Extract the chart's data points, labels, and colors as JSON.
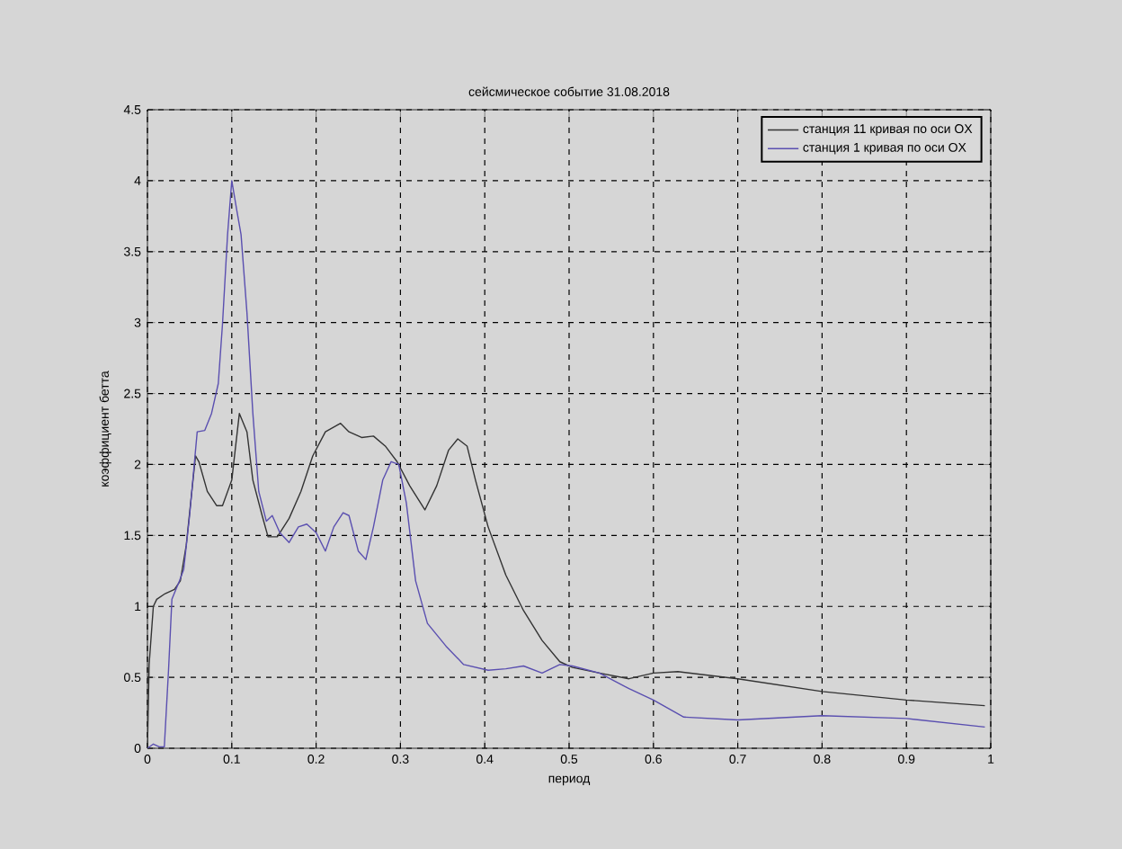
{
  "chart_data": {
    "type": "line",
    "title": "сейсмическое событие 31.08.2018",
    "xlabel": "период",
    "ylabel": "коэффициент бетта",
    "xlim": [
      0,
      1
    ],
    "ylim": [
      0,
      4.5
    ],
    "xticks": [
      0,
      0.1,
      0.2,
      0.3,
      0.4,
      0.5,
      0.6,
      0.7,
      0.8,
      0.9,
      1
    ],
    "yticks": [
      0,
      0.5,
      1,
      1.5,
      2,
      2.5,
      3,
      3.5,
      4,
      4.5
    ],
    "grid": true,
    "legend": "top right",
    "marker": "none",
    "line_style": "solid",
    "series": [
      {
        "name": "станция 11 кривая по оси OX",
        "color": "#333333",
        "x": [
          0,
          0.002,
          0.007,
          0.011,
          0.021,
          0.032,
          0.039,
          0.046,
          0.057,
          0.061,
          0.071,
          0.082,
          0.089,
          0.1,
          0.109,
          0.118,
          0.125,
          0.136,
          0.143,
          0.154,
          0.168,
          0.182,
          0.196,
          0.211,
          0.229,
          0.239,
          0.254,
          0.268,
          0.282,
          0.296,
          0.311,
          0.329,
          0.343,
          0.357,
          0.368,
          0.379,
          0.389,
          0.404,
          0.425,
          0.446,
          0.468,
          0.489,
          0.504,
          0.536,
          0.571,
          0.6,
          0.629,
          0.7,
          0.8,
          0.9,
          0.993
        ],
        "values": [
          0,
          0.59,
          1.0,
          1.05,
          1.09,
          1.12,
          1.18,
          1.43,
          2.06,
          2.02,
          1.81,
          1.71,
          1.71,
          1.89,
          2.36,
          2.23,
          1.89,
          1.64,
          1.49,
          1.49,
          1.62,
          1.81,
          2.06,
          2.23,
          2.29,
          2.23,
          2.19,
          2.2,
          2.13,
          2.02,
          1.85,
          1.68,
          1.85,
          2.1,
          2.18,
          2.13,
          1.89,
          1.56,
          1.22,
          0.97,
          0.76,
          0.61,
          0.57,
          0.53,
          0.49,
          0.53,
          0.54,
          0.49,
          0.4,
          0.34,
          0.3
        ]
      },
      {
        "name": "станция 1 кривая  по оси OX",
        "color": "#5a4fb0",
        "x": [
          0,
          0.007,
          0.014,
          0.02,
          0.025,
          0.029,
          0.038,
          0.043,
          0.05,
          0.059,
          0.068,
          0.076,
          0.084,
          0.089,
          0.095,
          0.1,
          0.106,
          0.111,
          0.118,
          0.125,
          0.132,
          0.141,
          0.148,
          0.157,
          0.168,
          0.179,
          0.189,
          0.2,
          0.211,
          0.221,
          0.232,
          0.239,
          0.25,
          0.259,
          0.268,
          0.279,
          0.289,
          0.298,
          0.307,
          0.318,
          0.332,
          0.354,
          0.375,
          0.404,
          0.425,
          0.446,
          0.468,
          0.489,
          0.504,
          0.536,
          0.571,
          0.6,
          0.636,
          0.7,
          0.8,
          0.9,
          0.993
        ],
        "values": [
          0,
          0.03,
          0.01,
          0.01,
          0.55,
          1.05,
          1.18,
          1.26,
          1.64,
          2.23,
          2.24,
          2.36,
          2.57,
          2.99,
          3.62,
          4.0,
          3.79,
          3.62,
          3.07,
          2.36,
          1.81,
          1.6,
          1.64,
          1.52,
          1.45,
          1.56,
          1.58,
          1.52,
          1.39,
          1.56,
          1.66,
          1.64,
          1.39,
          1.33,
          1.56,
          1.89,
          2.02,
          2.0,
          1.73,
          1.18,
          0.88,
          0.72,
          0.59,
          0.55,
          0.56,
          0.58,
          0.53,
          0.59,
          0.58,
          0.53,
          0.42,
          0.34,
          0.22,
          0.2,
          0.23,
          0.21,
          0.15
        ]
      }
    ]
  }
}
